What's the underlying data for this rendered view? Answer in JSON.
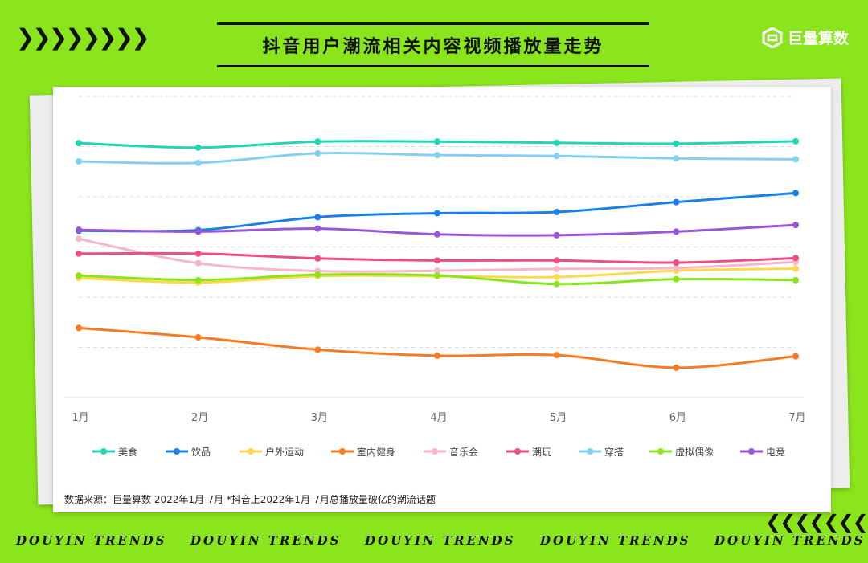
{
  "header": {
    "title": "抖音用户潮流相关内容视频播放量走势",
    "logo_text": "巨量算数",
    "left_chevrons": "❯❯❯❯❯❯❯❯",
    "right_chevrons": "❮❮❮❮❮❮❮❮"
  },
  "source_note": "数据来源：巨量算数 2022年1月-7月 *抖音上2022年1月-7月总播放量破亿的潮流话题",
  "footer": {
    "repeat_text": [
      "DOUYIN TRENDS",
      "DOUYIN TRENDS",
      "DOUYIN TRENDS",
      "DOUYIN TRENDS",
      "DOUYIN TRENDS"
    ]
  },
  "chart_data": {
    "type": "line",
    "title": "抖音用户潮流相关内容视频播放量走势",
    "xlabel": "",
    "ylabel": "",
    "x": [
      "1月",
      "2月",
      "3月",
      "4月",
      "5月",
      "6月",
      "7月"
    ],
    "y_axis_labels_shown": false,
    "ylim": [
      0,
      100
    ],
    "grid": true,
    "legend_position": "bottom",
    "series": [
      {
        "name": "美食",
        "color": "#22d6b5",
        "values": [
          84.5,
          83,
          85,
          85,
          84.6,
          84.3,
          85.1
        ]
      },
      {
        "name": "饮品",
        "color": "#1a7fe8",
        "values": [
          55.4,
          55.6,
          59.9,
          61.2,
          61.6,
          64.9,
          67.9
        ]
      },
      {
        "name": "户外运动",
        "color": "#ffd84d",
        "values": [
          39.7,
          38.2,
          40.3,
          40.3,
          40.0,
          42.1,
          42.8
        ]
      },
      {
        "name": "室内健身",
        "color": "#f87a23",
        "values": [
          23.1,
          20.0,
          15.9,
          13.9,
          14.1,
          9.9,
          13.7
        ]
      },
      {
        "name": "音乐会",
        "color": "#f6b7cb",
        "values": [
          52.7,
          44.6,
          42.0,
          42.1,
          42.7,
          43.0,
          45.0
        ]
      },
      {
        "name": "潮玩",
        "color": "#ee4e86",
        "values": [
          47.8,
          47.8,
          46.2,
          45.5,
          45.5,
          44.8,
          46.3
        ]
      },
      {
        "name": "穿搭",
        "color": "#84d0f3",
        "values": [
          78.4,
          77.9,
          81.1,
          80.5,
          80.2,
          79.4,
          79.1
        ]
      },
      {
        "name": "虚拟偶像",
        "color": "#8be51d",
        "values": [
          40.5,
          39.0,
          40.8,
          40.5,
          37.7,
          39.3,
          39.0
        ]
      },
      {
        "name": "电竞",
        "color": "#9b56d8",
        "values": [
          55.7,
          55.1,
          56.1,
          54.2,
          53.9,
          55.1,
          57.3
        ]
      }
    ]
  }
}
